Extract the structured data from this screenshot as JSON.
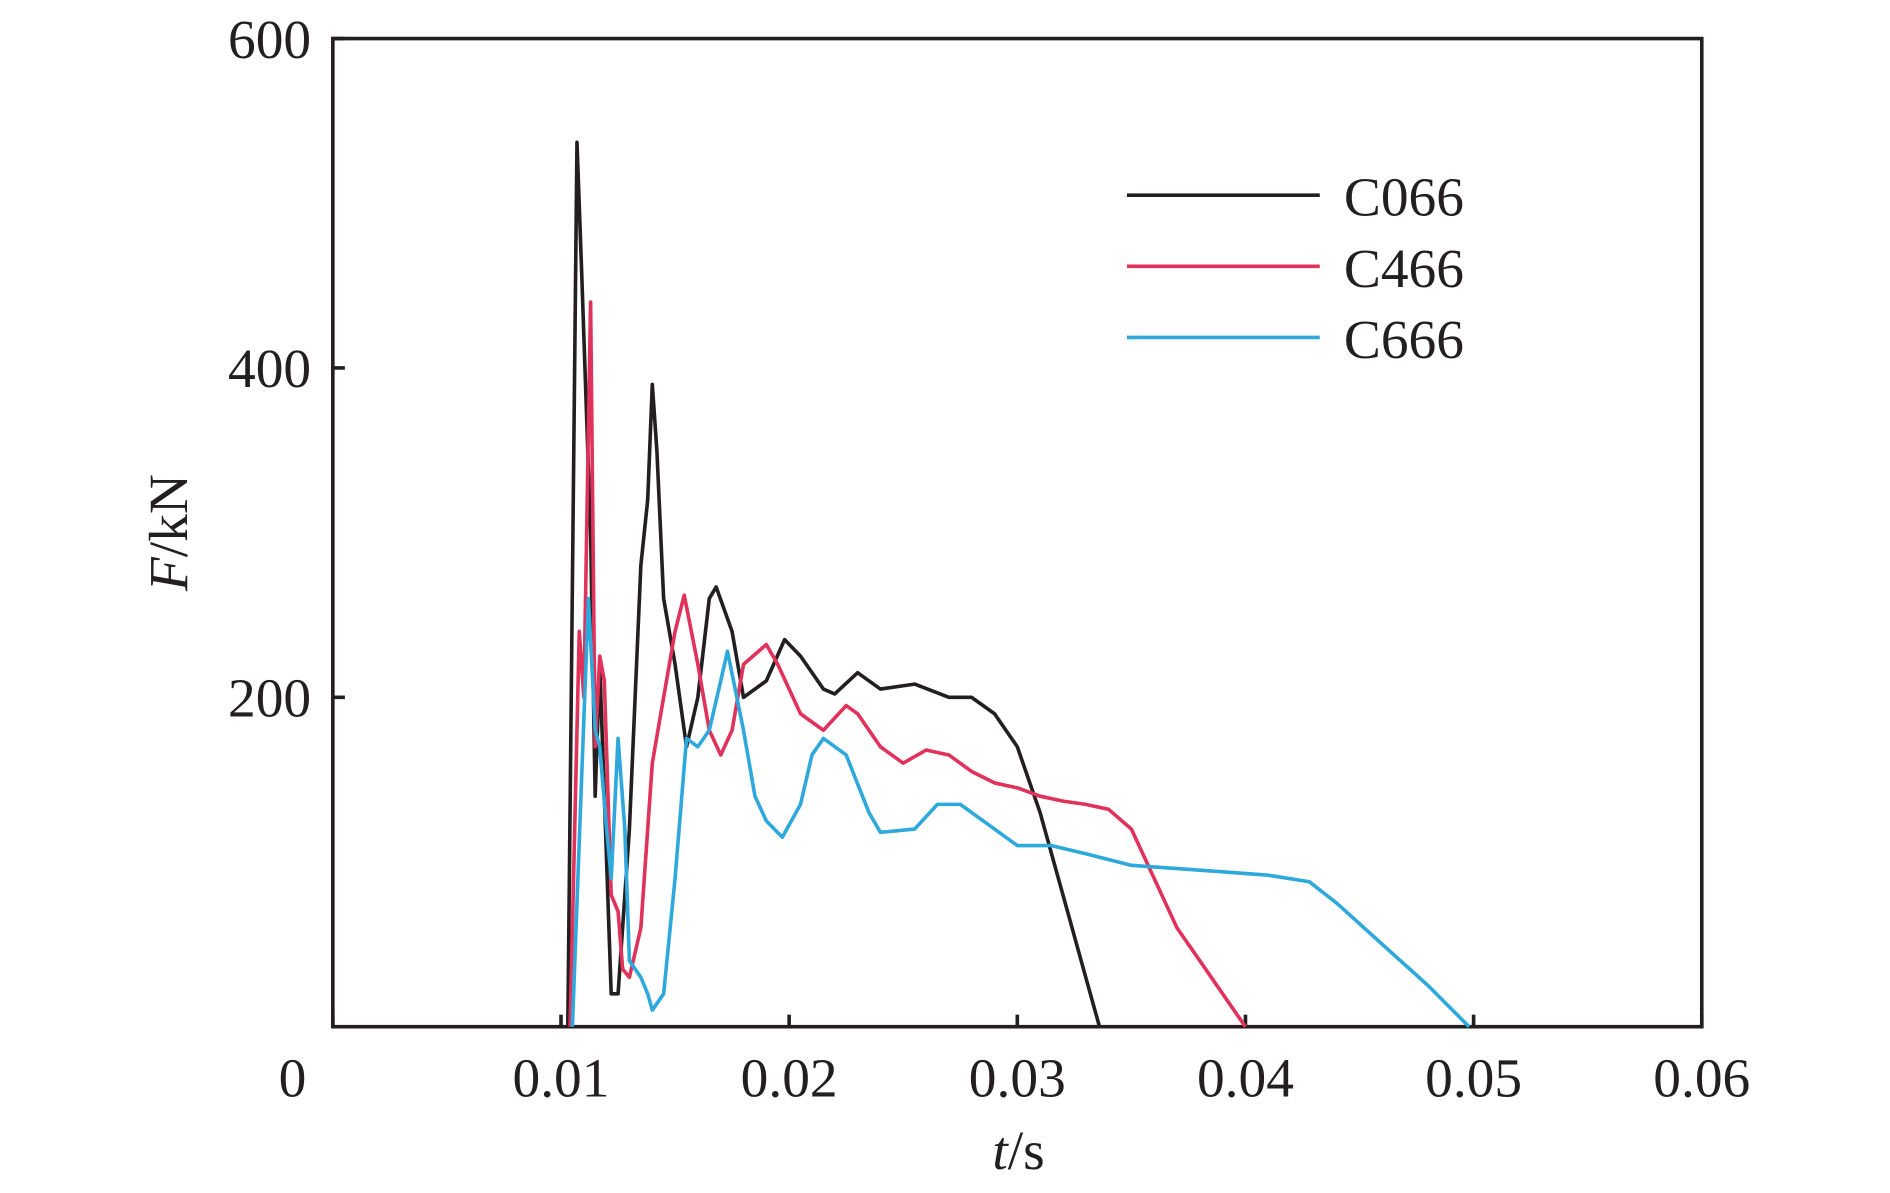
{
  "chart_data": {
    "type": "line",
    "x_label": "t/s",
    "y_label": "F/kN",
    "xlim": [
      0,
      0.06
    ],
    "xticks": [
      0,
      0.01,
      0.02,
      0.03,
      0.04,
      0.05,
      0.06
    ],
    "ylim": [
      0,
      600
    ],
    "yticks": [
      200,
      400,
      600
    ],
    "legend": "upper right",
    "series": [
      {
        "name": "C066",
        "color": "#231f20",
        "x": [
          0.0103,
          0.0107,
          0.0109,
          0.0113,
          0.0115,
          0.0117,
          0.012,
          0.0122,
          0.0125,
          0.013,
          0.0135,
          0.0138,
          0.014,
          0.0142,
          0.0145,
          0.015,
          0.0155,
          0.016,
          0.0165,
          0.0168,
          0.0175,
          0.018,
          0.019,
          0.0198,
          0.0205,
          0.0215,
          0.022,
          0.023,
          0.024,
          0.0255,
          0.027,
          0.028,
          0.029,
          0.03,
          0.031,
          0.032,
          0.033,
          0.0336
        ],
        "values": [
          0,
          537,
          460,
          300,
          140,
          220,
          100,
          20,
          20,
          120,
          280,
          320,
          390,
          350,
          260,
          220,
          170,
          200,
          260,
          267,
          240,
          200,
          210,
          235,
          225,
          205,
          202,
          215,
          205,
          208,
          200,
          200,
          190,
          170,
          130,
          80,
          30,
          0
        ]
      },
      {
        "name": "C466",
        "color": "#e0325a",
        "x": [
          0.0104,
          0.0108,
          0.011,
          0.0113,
          0.0115,
          0.0117,
          0.0119,
          0.0122,
          0.0125,
          0.0127,
          0.013,
          0.0135,
          0.014,
          0.0145,
          0.015,
          0.0154,
          0.016,
          0.0165,
          0.017,
          0.0175,
          0.018,
          0.019,
          0.0195,
          0.0205,
          0.0215,
          0.0225,
          0.023,
          0.024,
          0.025,
          0.026,
          0.027,
          0.028,
          0.029,
          0.03,
          0.031,
          0.032,
          0.033,
          0.034,
          0.035,
          0.036,
          0.037,
          0.038,
          0.039,
          0.04
        ],
        "values": [
          0,
          240,
          200,
          440,
          170,
          225,
          210,
          80,
          70,
          35,
          30,
          60,
          160,
          200,
          240,
          262,
          220,
          180,
          165,
          180,
          220,
          232,
          220,
          190,
          180,
          195,
          190,
          170,
          160,
          168,
          165,
          155,
          148,
          145,
          140,
          137,
          135,
          132,
          120,
          90,
          60,
          40,
          20,
          0
        ]
      },
      {
        "name": "C666",
        "color": "#2fa8dc",
        "x": [
          0.0105,
          0.0109,
          0.0112,
          0.0115,
          0.0117,
          0.012,
          0.0122,
          0.0125,
          0.0128,
          0.013,
          0.0135,
          0.0138,
          0.014,
          0.0145,
          0.015,
          0.0155,
          0.016,
          0.0165,
          0.017,
          0.0173,
          0.018,
          0.0185,
          0.019,
          0.0197,
          0.0205,
          0.021,
          0.0215,
          0.0225,
          0.0235,
          0.024,
          0.0255,
          0.0265,
          0.0275,
          0.029,
          0.03,
          0.0315,
          0.033,
          0.035,
          0.037,
          0.039,
          0.041,
          0.0428,
          0.044,
          0.046,
          0.048,
          0.0498
        ],
        "values": [
          0,
          150,
          260,
          180,
          170,
          120,
          90,
          175,
          120,
          40,
          30,
          20,
          10,
          20,
          90,
          175,
          170,
          180,
          210,
          228,
          180,
          140,
          125,
          115,
          135,
          165,
          175,
          165,
          130,
          118,
          120,
          135,
          135,
          120,
          110,
          110,
          105,
          98,
          96,
          94,
          92,
          88,
          75,
          50,
          25,
          0
        ]
      }
    ]
  }
}
